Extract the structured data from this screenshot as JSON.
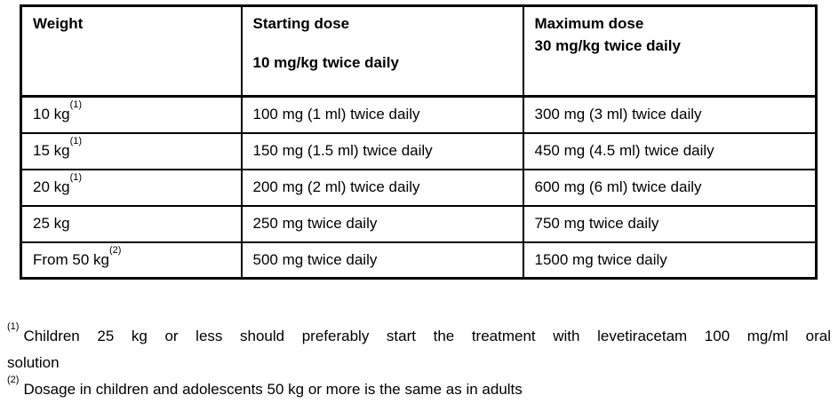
{
  "table": {
    "header": {
      "weight": "Weight",
      "starting_line1": "Starting dose",
      "starting_line2": "10 mg/kg twice daily",
      "maximum_line1": "Maximum dose",
      "maximum_line2": "30 mg/kg twice daily"
    },
    "rows": [
      {
        "weight": "10 kg",
        "weight_marker": "(1)",
        "starting_dose": "100 mg (1 ml) twice daily",
        "maximum_dose": "300 mg (3 ml) twice daily"
      },
      {
        "weight": "15 kg",
        "weight_marker": "(1)",
        "starting_dose": "150 mg (1.5 ml) twice daily",
        "maximum_dose": "450 mg (4.5 ml) twice daily"
      },
      {
        "weight": "20 kg",
        "weight_marker": "(1)",
        "starting_dose": "200 mg (2 ml) twice daily",
        "maximum_dose": "600 mg (6 ml) twice daily"
      },
      {
        "weight": "25 kg",
        "weight_marker": "",
        "starting_dose": "250 mg twice daily",
        "maximum_dose": "750 mg twice daily"
      },
      {
        "weight": "From 50 kg",
        "weight_marker": "(2)",
        "starting_dose": "500 mg twice daily",
        "maximum_dose": "1500 mg twice daily"
      }
    ]
  },
  "footnotes": [
    {
      "marker": "(1)",
      "line1": "Children 25 kg or less should preferably start the treatment with levetiracetam 100 mg/ml oral",
      "line2": "solution"
    },
    {
      "marker": "(2)",
      "line1": "Dosage in children and adolescents 50 kg or more is the same as in adults"
    }
  ],
  "colors": {
    "text": "#000000",
    "border": "#000000",
    "background": "#ffffff"
  }
}
